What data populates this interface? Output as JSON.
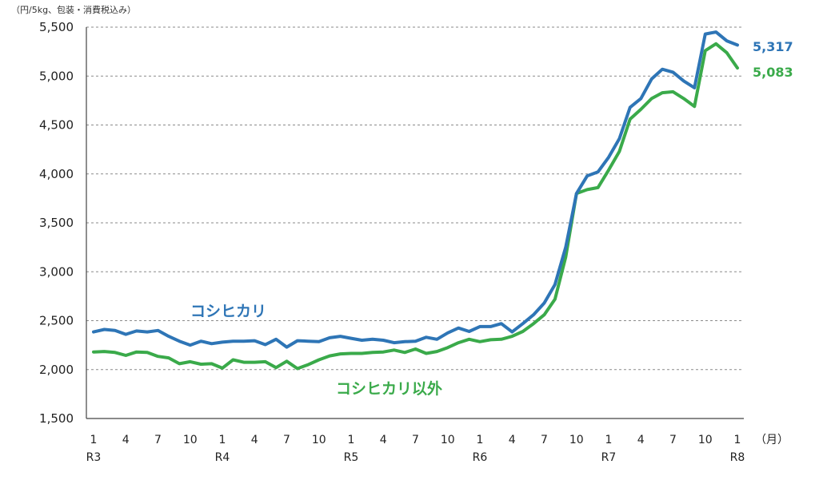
{
  "chart_data": {
    "type": "line",
    "unit_label": "（円/5kg、包装・消費税込み）",
    "x_unit": "（月）",
    "ylim": [
      1500,
      5500
    ],
    "yticks": [
      1500,
      2000,
      2500,
      3000,
      3500,
      4000,
      4500,
      5000,
      5500
    ],
    "ytick_labels": [
      "1,500",
      "2,000",
      "2,500",
      "3,000",
      "3,500",
      "4,000",
      "4,500",
      "5,000",
      "5,500"
    ],
    "grid": true,
    "month_labels": [
      {
        "index": 0,
        "label": "1"
      },
      {
        "index": 3,
        "label": "4"
      },
      {
        "index": 6,
        "label": "7"
      },
      {
        "index": 9,
        "label": "10"
      },
      {
        "index": 12,
        "label": "1"
      },
      {
        "index": 15,
        "label": "4"
      },
      {
        "index": 18,
        "label": "7"
      },
      {
        "index": 21,
        "label": "10"
      },
      {
        "index": 24,
        "label": "1"
      },
      {
        "index": 27,
        "label": "4"
      },
      {
        "index": 30,
        "label": "7"
      },
      {
        "index": 33,
        "label": "10"
      },
      {
        "index": 36,
        "label": "1"
      },
      {
        "index": 39,
        "label": "4"
      },
      {
        "index": 42,
        "label": "7"
      },
      {
        "index": 45,
        "label": "10"
      },
      {
        "index": 48,
        "label": "1"
      },
      {
        "index": 51,
        "label": "4"
      },
      {
        "index": 54,
        "label": "7"
      },
      {
        "index": 57,
        "label": "10"
      },
      {
        "index": 60,
        "label": "1"
      }
    ],
    "era_labels": [
      {
        "index": 0,
        "label": "R3"
      },
      {
        "index": 12,
        "label": "R4"
      },
      {
        "index": 24,
        "label": "R5"
      },
      {
        "index": 36,
        "label": "R6"
      },
      {
        "index": 48,
        "label": "R7"
      },
      {
        "index": 60,
        "label": "R8"
      }
    ],
    "series": [
      {
        "name": "コシヒカリ",
        "color": "#2e75b6",
        "end_label": "5,317",
        "values": [
          2385,
          2410,
          2400,
          2360,
          2395,
          2385,
          2400,
          2340,
          2290,
          2250,
          2290,
          2265,
          2280,
          2290,
          2290,
          2295,
          2255,
          2310,
          2230,
          2295,
          2290,
          2285,
          2325,
          2340,
          2320,
          2300,
          2310,
          2300,
          2275,
          2285,
          2290,
          2330,
          2310,
          2375,
          2425,
          2390,
          2440,
          2440,
          2470,
          2385,
          2470,
          2560,
          2680,
          2870,
          3250,
          3800,
          3980,
          4020,
          4170,
          4360,
          4680,
          4770,
          4970,
          5070,
          5040,
          4950,
          4880,
          5430,
          5450,
          5360,
          5317
        ]
      },
      {
        "name": "コシヒカリ以外",
        "color": "#3aaa4a",
        "end_label": "5,083",
        "values": [
          2180,
          2185,
          2175,
          2145,
          2180,
          2175,
          2135,
          2120,
          2060,
          2080,
          2055,
          2060,
          2015,
          2100,
          2075,
          2075,
          2080,
          2020,
          2085,
          2010,
          2050,
          2100,
          2140,
          2160,
          2165,
          2165,
          2175,
          2180,
          2200,
          2175,
          2210,
          2165,
          2185,
          2225,
          2275,
          2310,
          2285,
          2305,
          2310,
          2340,
          2390,
          2470,
          2560,
          2720,
          3150,
          3800,
          3840,
          3860,
          4040,
          4230,
          4560,
          4660,
          4770,
          4830,
          4840,
          4770,
          4690,
          5260,
          5330,
          5240,
          5083
        ]
      }
    ],
    "series_labels": [
      "コシヒカリ",
      "コシヒカリ以外"
    ]
  }
}
